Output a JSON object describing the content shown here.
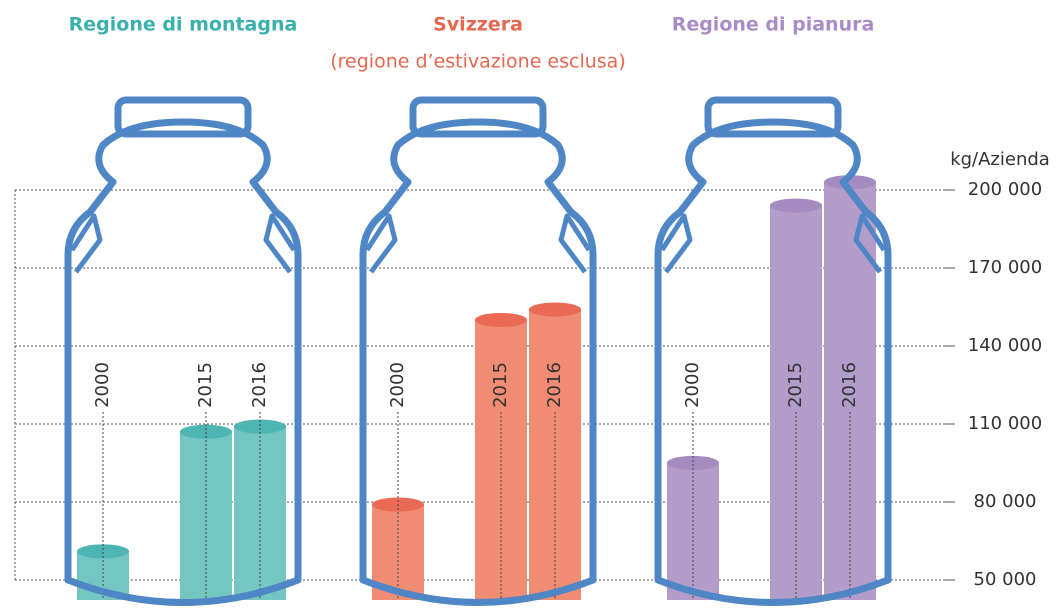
{
  "chart_data": {
    "type": "bar",
    "categories": [
      "Regione di montagna",
      "Svizzera",
      "Regione di pianura"
    ],
    "category_notes": [
      null,
      "(regione d’estivazione esclusa)",
      null
    ],
    "colors": [
      "#74c6c3",
      "#f08c73",
      "#b39cc9"
    ],
    "title_colors": [
      "#3ab0ad",
      "#e8664f",
      "#a98bc7"
    ],
    "top_colors": [
      "#4db6b2",
      "#ea6a55",
      "#a58bc0"
    ],
    "series": [
      {
        "name": "2000",
        "values": [
          61000,
          79000,
          95000
        ]
      },
      {
        "name": "2015",
        "values": [
          107000,
          150000,
          194000
        ]
      },
      {
        "name": "2016",
        "values": [
          109000,
          154000,
          203000
        ]
      }
    ],
    "ylabel": "kg/Azienda",
    "ylim": [
      50000,
      200000
    ],
    "yticks": [
      {
        "value": 50000,
        "label": "50 000"
      },
      {
        "value": 80000,
        "label": "80 000"
      },
      {
        "value": 110000,
        "label": "110 000"
      },
      {
        "value": 140000,
        "label": "140 000"
      },
      {
        "value": 170000,
        "label": "170 000"
      },
      {
        "value": 200000,
        "label": "200 000"
      }
    ],
    "grid": true
  }
}
